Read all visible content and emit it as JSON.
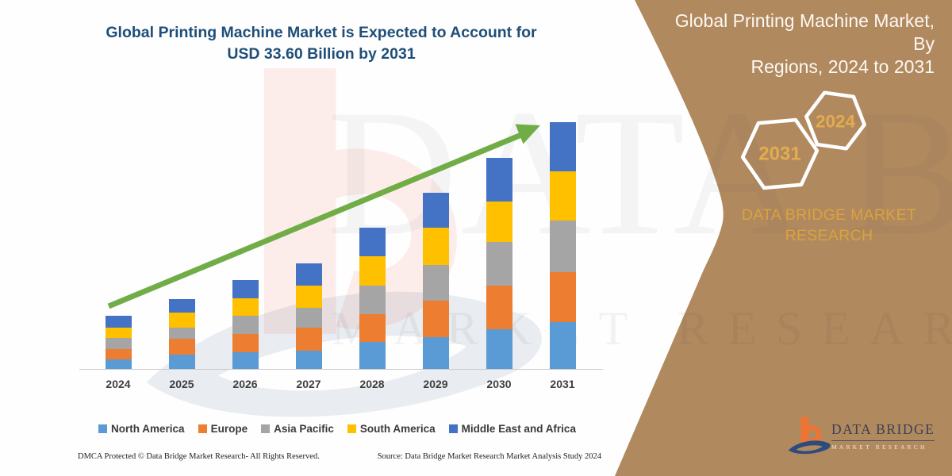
{
  "title": {
    "line1": "Global Printing Machine Market is Expected to Account for",
    "line2": "USD 33.60 Billion by 2031"
  },
  "chart_data": {
    "type": "bar",
    "stacked": true,
    "title": "Global Printing Machine Market is Expected to Account for USD 33.60 Billion by 2031",
    "unit": "USD Billion",
    "categories": [
      "2024",
      "2025",
      "2026",
      "2027",
      "2028",
      "2029",
      "2030",
      "2031"
    ],
    "series": [
      {
        "name": "North America",
        "color": "#5B9BD5",
        "values": [
          1.3,
          2.0,
          2.3,
          2.5,
          3.7,
          4.3,
          5.4,
          6.4
        ]
      },
      {
        "name": "Europe",
        "color": "#ED7D31",
        "values": [
          1.4,
          2.1,
          2.5,
          3.1,
          3.8,
          5.0,
          6.0,
          6.8
        ]
      },
      {
        "name": "Asia Pacific",
        "color": "#A5A5A5",
        "values": [
          1.5,
          1.5,
          2.5,
          2.7,
          3.9,
          4.9,
          5.9,
          7.0
        ]
      },
      {
        "name": "South America",
        "color": "#FFC000",
        "values": [
          1.4,
          2.1,
          2.3,
          3.0,
          4.0,
          5.0,
          5.5,
          6.7
        ]
      },
      {
        "name": "Middle East and Africa",
        "color": "#4472C4",
        "values": [
          1.6,
          1.8,
          2.5,
          3.1,
          3.8,
          4.8,
          6.0,
          6.7
        ]
      }
    ],
    "totals_estimated": [
      7.2,
      9.5,
      12.1,
      14.4,
      19.2,
      24.0,
      28.8,
      33.6
    ],
    "final_value_label": "USD 33.60 Billion by 2031",
    "value_axis_visible": false,
    "grid": false,
    "ylim": [
      0,
      35.3
    ],
    "legend_position": "bottom",
    "annotation": "green upward trend arrow from 2024 to 2031"
  },
  "panel": {
    "title_line1": "Global Printing Machine Market, By",
    "title_line2": "Regions, 2024 to 2031",
    "hex_large_year": "2031",
    "hex_small_year": "2024",
    "brand_line1": "DATA BRIDGE MARKET",
    "brand_line2": "RESEARCH"
  },
  "logo": {
    "name": "DATA BRIDGE",
    "subtitle": "MARKET RESEARCH"
  },
  "footer": {
    "left": "DMCA Protected © Data Bridge Market Research-  All Rights Reserved.",
    "right": "Source: Data Bridge Market Research  Market Analysis Study 2024"
  },
  "colors": {
    "panel_brown": "#B1895F",
    "title_blue": "#1F4E79",
    "arrow_green": "#70AD47",
    "gold": "#D9A33E",
    "axis_gray": "#C9C9C9",
    "logo_orange": "#EF7434",
    "logo_navy": "#2E4B7E"
  }
}
